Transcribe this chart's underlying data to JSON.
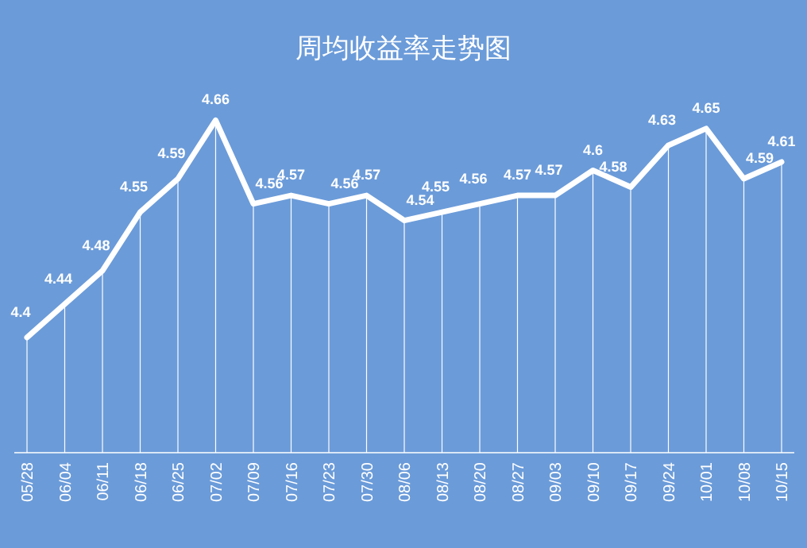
{
  "chart_data": {
    "type": "line",
    "title": "周均收益率走势图",
    "categories": [
      "05/28",
      "06/04",
      "06/11",
      "06/18",
      "06/25",
      "07/02",
      "07/09",
      "07/16",
      "07/23",
      "07/30",
      "08/06",
      "08/13",
      "08/20",
      "08/27",
      "09/03",
      "09/10",
      "09/17",
      "09/24",
      "10/01",
      "10/08",
      "10/15"
    ],
    "series": [
      {
        "color": "#ffffff",
        "values": [
          4.4,
          4.44,
          4.48,
          4.55,
          4.59,
          4.66,
          4.56,
          4.57,
          4.56,
          4.57,
          4.54,
          4.55,
          4.56,
          4.57,
          4.57,
          4.6,
          4.58,
          4.63,
          4.65,
          4.59,
          4.61
        ]
      }
    ],
    "data_labels": true,
    "marker": "none",
    "line_style": "solid",
    "grid": "x"
  }
}
